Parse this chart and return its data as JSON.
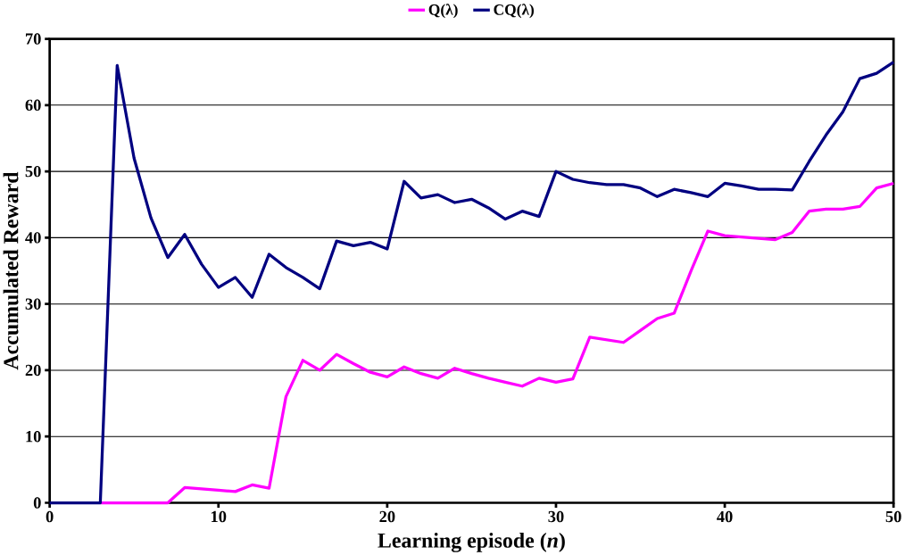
{
  "chart_data": {
    "type": "line",
    "xlabel": "Learning episode (*n*)",
    "ylabel": "Accumulated Reward",
    "x": [
      0,
      1,
      2,
      3,
      4,
      5,
      6,
      7,
      8,
      9,
      10,
      11,
      12,
      13,
      14,
      15,
      16,
      17,
      18,
      19,
      20,
      21,
      22,
      23,
      24,
      25,
      26,
      27,
      28,
      29,
      30,
      31,
      32,
      33,
      34,
      35,
      36,
      37,
      38,
      39,
      40,
      41,
      42,
      43,
      44,
      45,
      46,
      47,
      48,
      49,
      50
    ],
    "series": [
      {
        "name": "Q(λ)",
        "color": "#ff00ff",
        "values": [
          null,
          null,
          null,
          0,
          0,
          0,
          0,
          0,
          2.3,
          2.1,
          1.9,
          1.7,
          2.7,
          2.2,
          16,
          21.5,
          20,
          22.4,
          21,
          19.7,
          19,
          20.5,
          19.5,
          18.8,
          20.3,
          19.5,
          18.8,
          18.2,
          17.6,
          18.8,
          18.2,
          18.7,
          25,
          24.6,
          24.2,
          26,
          27.8,
          28.6,
          35,
          41,
          40.3,
          40.1,
          39.9,
          39.7,
          40.8,
          44,
          44.3,
          44.3,
          44.7,
          47.5,
          48.2
        ]
      },
      {
        "name": "CQ(λ)",
        "color": "#000080",
        "values": [
          0,
          0,
          0,
          0,
          66,
          52,
          43,
          37,
          40.5,
          36,
          32.5,
          34,
          31,
          37.5,
          35.5,
          34,
          32.3,
          39.5,
          38.8,
          39.3,
          38.3,
          48.5,
          46,
          46.5,
          45.3,
          45.8,
          44.5,
          42.8,
          44,
          43.2,
          50,
          48.8,
          48.3,
          48,
          48,
          47.5,
          46.2,
          47.3,
          46.8,
          46.2,
          48.2,
          47.8,
          47.3,
          47.3,
          47.2,
          51.5,
          55.5,
          59,
          64,
          64.8,
          66.5
        ]
      }
    ],
    "xlim": [
      0,
      50
    ],
    "ylim": [
      0,
      70
    ],
    "xticks": [
      0,
      10,
      20,
      30,
      40,
      50
    ],
    "yticks": [
      0,
      10,
      20,
      30,
      40,
      50,
      60,
      70
    ],
    "grid": "y",
    "legend": "top",
    "marker": "none",
    "line_style": "solid"
  }
}
